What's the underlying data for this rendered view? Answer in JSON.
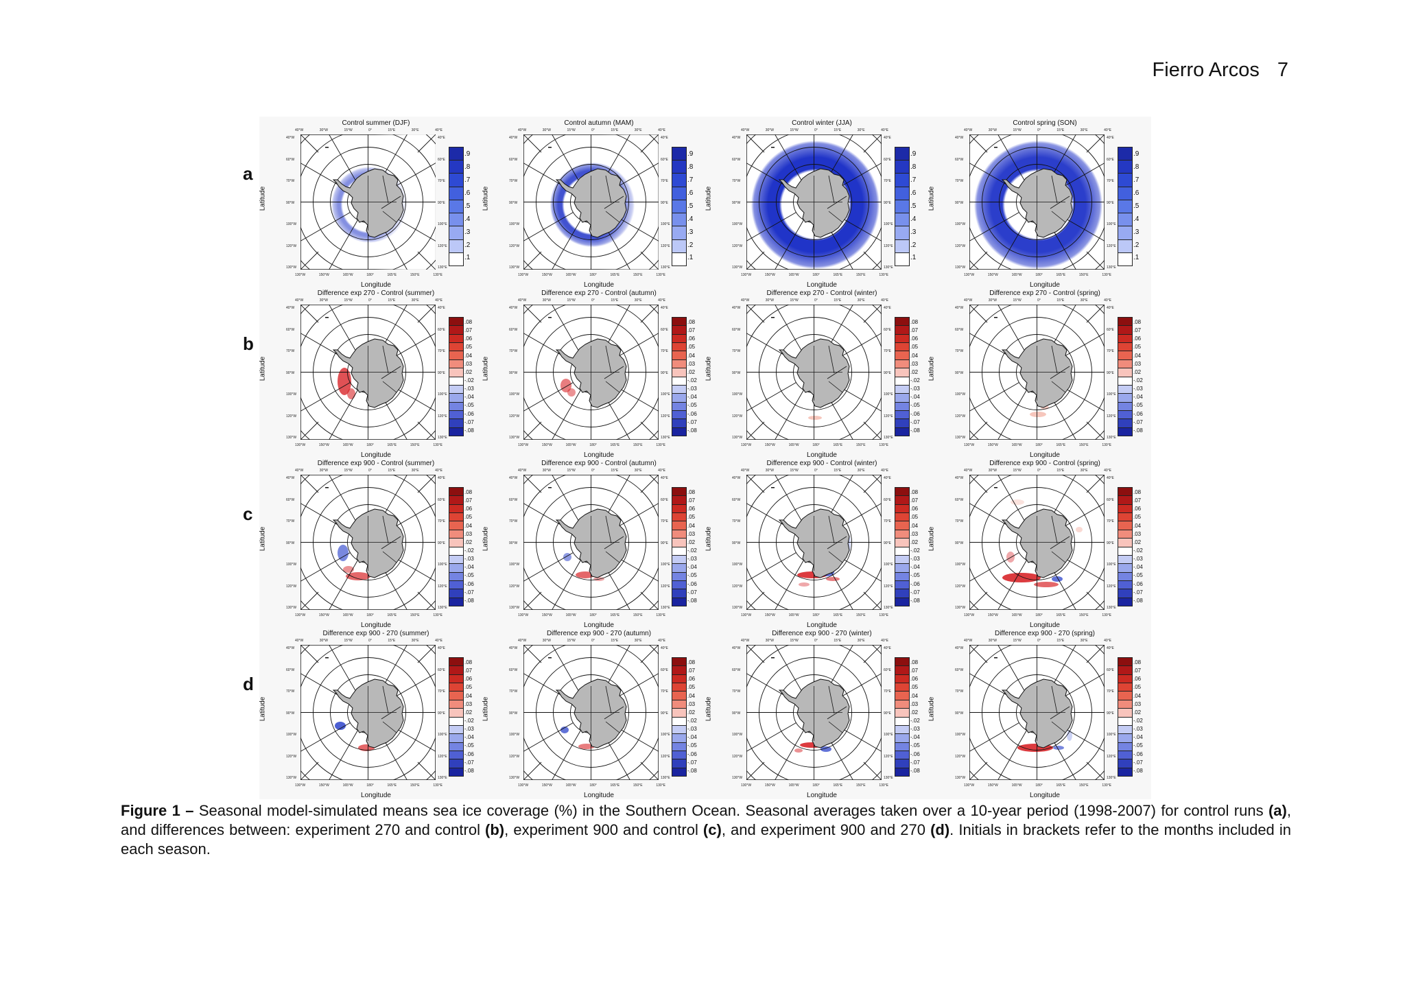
{
  "header": {
    "author": "Fierro Arcos",
    "page_number": "7"
  },
  "figure": {
    "row_labels": [
      "a",
      "b",
      "c",
      "d"
    ],
    "axis_labels": {
      "y": "Latitude",
      "x": "Longitude"
    },
    "lat_ticks": [
      "40°W",
      "60°W",
      "70°W",
      "90°W",
      "100°W",
      "120°W",
      "130°W"
    ],
    "lat_ticks_right": [
      "40°E",
      "60°E",
      "70°E",
      "90°E",
      "100°E",
      "120°E",
      "130°E"
    ],
    "lon_ticks_top": [
      "40°W",
      "30°W",
      "15°W",
      "0°",
      "15°E",
      "30°E",
      "40°E"
    ],
    "lon_ticks_bottom": [
      "130°W",
      "150°W",
      "165°W",
      "180°",
      "165°E",
      "150°E",
      "130°E"
    ],
    "colorbars": {
      "coverage": {
        "labels": [
          ".9",
          ".8",
          ".7",
          ".6",
          ".5",
          ".4",
          ".3",
          ".2",
          ".1"
        ],
        "colors": [
          "#1c2aa8",
          "#2438c2",
          "#2e4ad4",
          "#4260de",
          "#5a78e6",
          "#7890ec",
          "#98aaf2",
          "#bcc8f7",
          "#ffffff"
        ]
      },
      "difference": {
        "labels": [
          ".08",
          ".07",
          ".06",
          ".05",
          ".04",
          ".03",
          ".02",
          "-.02",
          "-.03",
          "-.04",
          "-.05",
          "-.06",
          "-.07",
          "-.08"
        ],
        "colors": [
          "#8c0f0f",
          "#b01818",
          "#cc2a22",
          "#de4434",
          "#e86450",
          "#f08c7c",
          "#f8c4bc",
          "#ffffff",
          "#c4ccf4",
          "#9aa8ec",
          "#7484e2",
          "#5060d4",
          "#3040bc",
          "#1a24a0"
        ]
      }
    },
    "rows": [
      {
        "label": "a",
        "bar": "coverage",
        "panels": [
          {
            "title": "Control summer (DJF)",
            "ice": "summer"
          },
          {
            "title": "Control autumn (MAM)",
            "ice": "autumn"
          },
          {
            "title": "Control winter (JJA)",
            "ice": "winter"
          },
          {
            "title": "Control spring (SON)",
            "ice": "spring"
          }
        ]
      },
      {
        "label": "b",
        "bar": "difference",
        "panels": [
          {
            "title": "Difference exp 270 - Control (summer)",
            "diff": "b1"
          },
          {
            "title": "Difference exp 270 - Control (autumn)",
            "diff": "b2"
          },
          {
            "title": "Difference exp 270 - Control (winter)",
            "diff": "b3"
          },
          {
            "title": "Difference exp 270 - Control (spring)",
            "diff": "b4"
          }
        ]
      },
      {
        "label": "c",
        "bar": "difference",
        "panels": [
          {
            "title": "Difference exp 900 - Control (summer)",
            "diff": "c1"
          },
          {
            "title": "Difference exp 900 - Control (autumn)",
            "diff": "c2"
          },
          {
            "title": "Difference exp 900 - Control (winter)",
            "diff": "c3"
          },
          {
            "title": "Difference exp 900 - Control (spring)",
            "diff": "c4"
          }
        ]
      },
      {
        "label": "d",
        "bar": "difference",
        "panels": [
          {
            "title": "Difference exp 900 - 270 (summer)",
            "diff": "d1"
          },
          {
            "title": "Difference exp 900 - 270 (autumn)",
            "diff": "d2"
          },
          {
            "title": "Difference exp 900 - 270 (winter)",
            "diff": "d3"
          },
          {
            "title": "Difference exp 900 - 270 (spring)",
            "diff": "d4"
          }
        ]
      }
    ]
  },
  "caption": {
    "figure_label": "Figure 1 –",
    "text_1": " Seasonal model-simulated means sea ice coverage (%) in the Southern Ocean. Seasonal averages taken over a 10-year period (1998-2007) for control runs ",
    "ref_a": "(a)",
    "text_2": ", and differences between: experiment 270 and control ",
    "ref_b": "(b)",
    "text_3": ", experiment 900 and control ",
    "ref_c": "(c)",
    "text_4": ", and experiment 900 and 270 ",
    "ref_d": "(d)",
    "text_5": ". Initials in brackets refer to the months included in each season."
  }
}
